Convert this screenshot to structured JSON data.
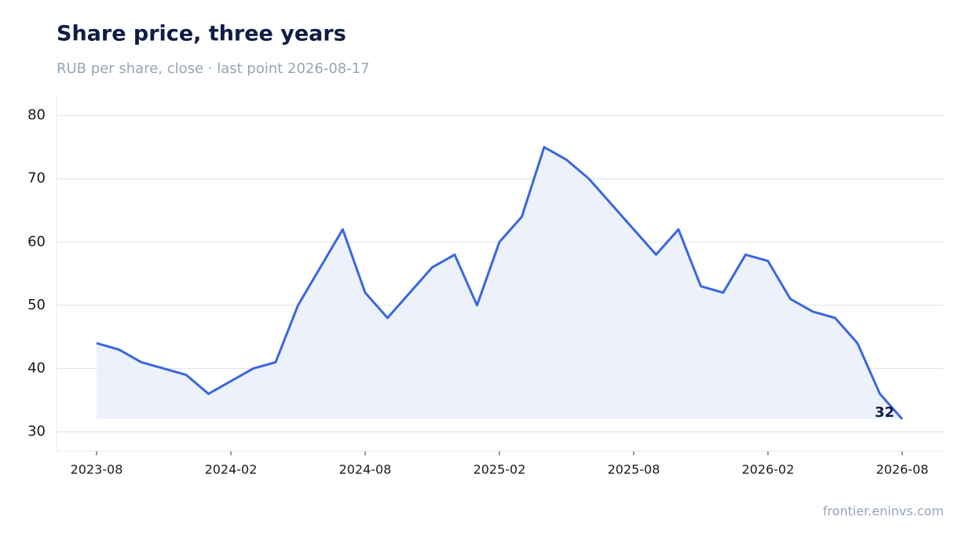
{
  "chart_data": {
    "type": "line",
    "title": "Share price, three years",
    "subtitle": "RUB per share, close · last point 2026-08-17",
    "source": "frontier.eninvs.com",
    "x": [
      "2023-08",
      "2023-09",
      "2023-10",
      "2023-11",
      "2023-12",
      "2024-01",
      "2024-02",
      "2024-03",
      "2024-04",
      "2024-05",
      "2024-06",
      "2024-07",
      "2024-08",
      "2024-09",
      "2024-10",
      "2024-11",
      "2024-12",
      "2025-01",
      "2025-02",
      "2025-03",
      "2025-04",
      "2025-05",
      "2025-06",
      "2025-07",
      "2025-08",
      "2025-09",
      "2025-10",
      "2025-11",
      "2025-12",
      "2026-01",
      "2026-02",
      "2026-03",
      "2026-04",
      "2026-05",
      "2026-06",
      "2026-07",
      "2026-08"
    ],
    "series": [
      {
        "name": "Close",
        "color": "#3a67e0",
        "values": [
          44,
          43,
          41,
          40,
          39,
          36,
          38,
          40,
          41,
          50,
          56,
          62,
          52,
          48,
          52,
          56,
          58,
          50,
          60,
          64,
          75,
          73,
          70,
          66,
          62,
          58,
          62,
          53,
          52,
          58,
          57,
          51,
          49,
          48,
          44,
          36,
          32
        ],
        "value_labels": [
          null,
          null,
          null,
          null,
          null,
          null,
          null,
          null,
          null,
          null,
          null,
          null,
          null,
          null,
          null,
          null,
          null,
          null,
          null,
          null,
          null,
          null,
          null,
          null,
          null,
          null,
          null,
          null,
          null,
          null,
          null,
          null,
          null,
          null,
          null,
          null,
          "32"
        ]
      }
    ],
    "xticks": [
      "2023-08",
      "2024-02",
      "2024-08",
      "2025-02",
      "2025-08",
      "2026-02",
      "2026-08"
    ],
    "ylim": [
      26.9,
      83
    ],
    "yticks": [
      30,
      40,
      50,
      60,
      70,
      80
    ],
    "grid": true,
    "area_fill": "#ebf0fc"
  }
}
